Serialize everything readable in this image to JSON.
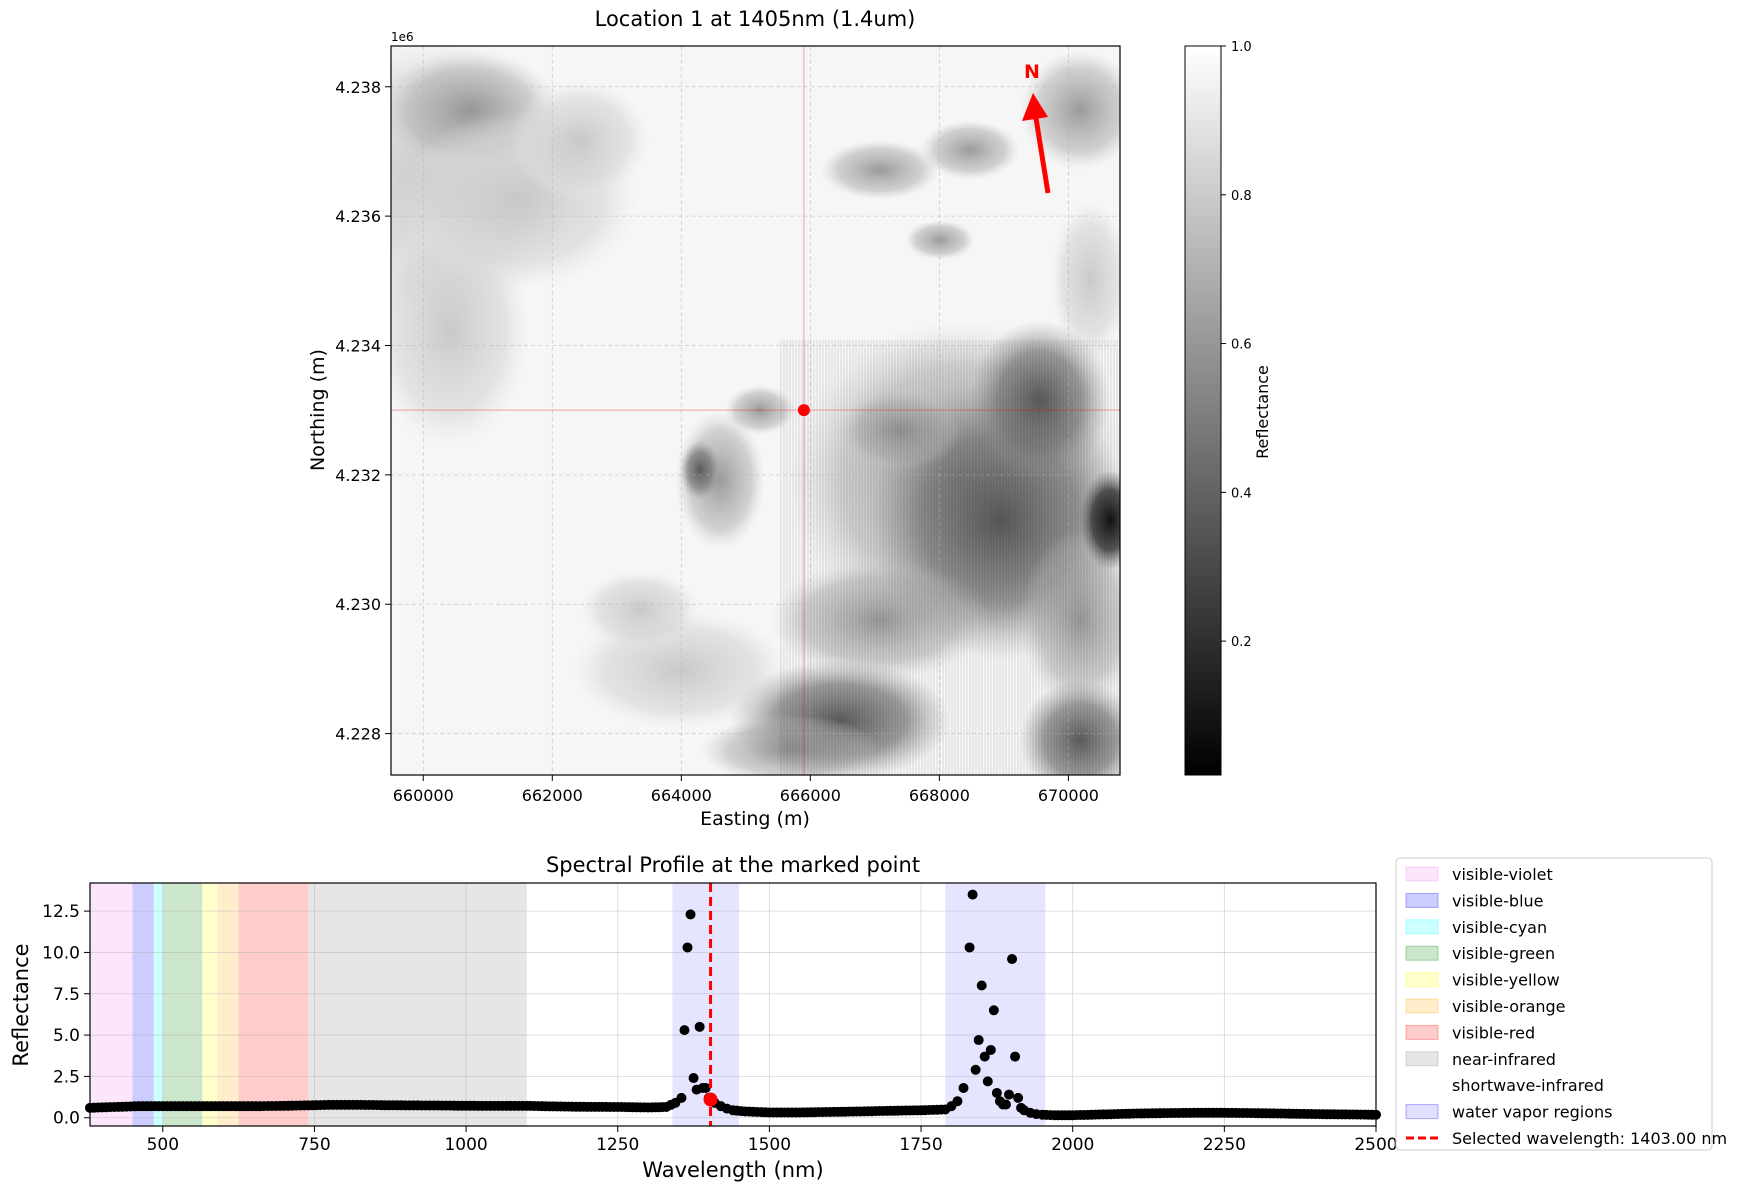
{
  "chart_data": [
    {
      "type": "heatmap",
      "title": "Location 1 at 1405nm (1.4um)",
      "xlabel": "Easting (m)",
      "ylabel": "Northing (m)",
      "y_offset_label": "1e6",
      "xlim": [
        659500,
        670800
      ],
      "ylim": [
        4.22736,
        4.23863
      ],
      "x_ticks": [
        660000,
        662000,
        664000,
        666000,
        668000,
        670000
      ],
      "x_tick_labels": [
        "660000",
        "662000",
        "664000",
        "666000",
        "668000",
        "670000"
      ],
      "y_ticks": [
        4.228,
        4.23,
        4.232,
        4.234,
        4.236,
        4.238
      ],
      "y_tick_labels": [
        "4.228",
        "4.230",
        "4.232",
        "4.234",
        "4.236",
        "4.238"
      ],
      "grid": true,
      "marked_point": {
        "x": 665900,
        "y": 4.233
      },
      "north_arrow": {
        "label": "N",
        "color": "#ff0000"
      },
      "colormap": "gray",
      "colorbar": {
        "label": "Reflectance",
        "range": [
          0.02,
          1.0
        ],
        "ticks": [
          0.2,
          0.4,
          0.6,
          0.8,
          1.0
        ],
        "tick_labels": [
          "0.2",
          "0.4",
          "0.6",
          "0.8",
          "1.0"
        ]
      }
    },
    {
      "type": "scatter",
      "title": "Spectral Profile at the marked point",
      "xlabel": "Wavelength (nm)",
      "ylabel": "Reflectance",
      "xlim": [
        380,
        2500
      ],
      "ylim": [
        -0.5,
        14.2
      ],
      "x_ticks": [
        500,
        750,
        1000,
        1250,
        1500,
        1750,
        2000,
        2250,
        2500
      ],
      "x_tick_labels": [
        "500",
        "750",
        "1000",
        "1250",
        "1500",
        "1750",
        "2000",
        "2250",
        "2500"
      ],
      "y_ticks": [
        0,
        2.5,
        5,
        7.5,
        10,
        12.5
      ],
      "y_tick_labels": [
        "0.0",
        "2.5",
        "5.0",
        "7.5",
        "10.0",
        "12.5"
      ],
      "grid": true,
      "bands": [
        {
          "name": "visible-violet",
          "range": [
            380,
            450
          ],
          "color": "#ee82ee"
        },
        {
          "name": "visible-blue",
          "range": [
            450,
            485
          ],
          "color": "#0000ff"
        },
        {
          "name": "visible-cyan",
          "range": [
            485,
            500
          ],
          "color": "#00ffff"
        },
        {
          "name": "visible-green",
          "range": [
            500,
            565
          ],
          "color": "#008000"
        },
        {
          "name": "visible-yellow",
          "range": [
            565,
            590
          ],
          "color": "#ffff00"
        },
        {
          "name": "visible-orange",
          "range": [
            590,
            625
          ],
          "color": "#ffa500"
        },
        {
          "name": "visible-red",
          "range": [
            625,
            740
          ],
          "color": "#ff0000"
        },
        {
          "name": "near-infrared",
          "range": [
            740,
            1100
          ],
          "color": "#808080"
        },
        {
          "name": "shortwave-infrared",
          "range": [
            1100,
            2500
          ],
          "color": "#ffffff"
        }
      ],
      "water_vapor_regions": {
        "name": "water vapor regions",
        "ranges": [
          [
            1340,
            1450
          ],
          [
            1790,
            1955
          ]
        ],
        "color": "#0000ff"
      },
      "selected_wavelength": {
        "label": "Selected wavelength: 1403.00 nm",
        "value": 1403,
        "reflectance": 1.1,
        "color": "#ff0000"
      },
      "series": [
        {
          "x": [
            380,
            420,
            460,
            500,
            540,
            580,
            620,
            660,
            700,
            740,
            780,
            820,
            860,
            900,
            940,
            980,
            1020,
            1060,
            1100,
            1150,
            1200,
            1250,
            1300,
            1330,
            1345,
            1355,
            1360,
            1365,
            1370,
            1375,
            1380,
            1385,
            1390,
            1395,
            1400,
            1410,
            1420,
            1430,
            1440,
            1460,
            1480,
            1500,
            1550,
            1600,
            1650,
            1700,
            1750,
            1790,
            1800,
            1810,
            1820,
            1830,
            1835,
            1840,
            1845,
            1850,
            1855,
            1860,
            1865,
            1870,
            1875,
            1880,
            1885,
            1890,
            1895,
            1900,
            1905,
            1910,
            1915,
            1920,
            1930,
            1940,
            1950,
            1970,
            2000,
            2050,
            2100,
            2150,
            2200,
            2250,
            2300,
            2350,
            2400,
            2450,
            2500
          ],
          "y": [
            0.6,
            0.65,
            0.7,
            0.7,
            0.7,
            0.7,
            0.7,
            0.7,
            0.72,
            0.75,
            0.78,
            0.78,
            0.76,
            0.75,
            0.74,
            0.73,
            0.72,
            0.72,
            0.72,
            0.68,
            0.66,
            0.65,
            0.62,
            0.65,
            0.9,
            1.2,
            5.3,
            10.3,
            12.3,
            2.4,
            1.7,
            5.5,
            1.8,
            1.8,
            1.2,
            0.9,
            0.7,
            0.55,
            0.45,
            0.38,
            0.35,
            0.32,
            0.32,
            0.35,
            0.38,
            0.42,
            0.45,
            0.5,
            0.7,
            1.0,
            1.8,
            10.3,
            13.5,
            2.9,
            4.7,
            8.0,
            3.7,
            2.2,
            4.1,
            6.5,
            1.5,
            1.0,
            0.8,
            0.8,
            1.4,
            9.6,
            3.7,
            1.2,
            0.6,
            0.45,
            0.3,
            0.22,
            0.18,
            0.15,
            0.15,
            0.2,
            0.25,
            0.28,
            0.3,
            0.3,
            0.28,
            0.25,
            0.22,
            0.2,
            0.18
          ],
          "color": "#000000"
        }
      ]
    }
  ]
}
